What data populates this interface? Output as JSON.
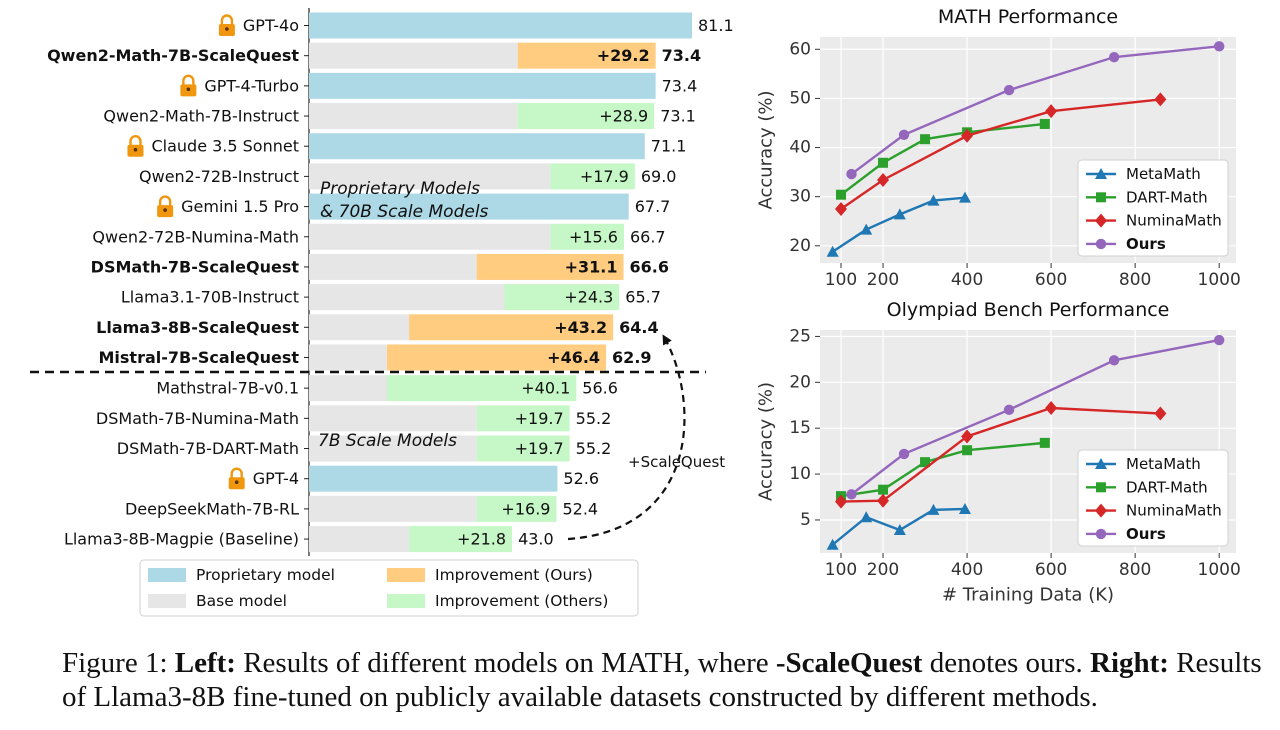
{
  "colors": {
    "proprietary": "#add8e6",
    "base": "#e6e6e6",
    "ours": "#ffcc80",
    "others": "#c6f7c6",
    "lock": "#f0960f",
    "metamath": "#1f77b4",
    "dart": "#2ca02c",
    "numina": "#d62728",
    "ourline": "#9467bd",
    "plot_bg": "#ebebeb"
  },
  "chart_data": [
    {
      "type": "bar",
      "id": "left",
      "xlim": [
        0,
        85
      ],
      "annotations": {
        "group1": [
          "Proprietary Models",
          "& 70B Scale Models"
        ],
        "group2": "7B Scale Models",
        "arrow_label": "+ScaleQuest"
      },
      "legend": {
        "placement": "bottom",
        "entries": [
          {
            "label": "Proprietary model",
            "color_key": "proprietary"
          },
          {
            "label": "Improvement (Ours)",
            "color_key": "ours"
          },
          {
            "label": "Base model",
            "color_key": "base"
          },
          {
            "label": "Improvement (Others)",
            "color_key": "others"
          }
        ]
      },
      "rows": [
        {
          "name": "GPT-4o",
          "kind": "prop",
          "base": 81.1,
          "total": 81.1,
          "total_label": "81.1",
          "lock": true
        },
        {
          "name": "Qwen2-Math-7B-ScaleQuest",
          "kind": "ours",
          "bold": true,
          "base": 44.2,
          "total": 73.4,
          "imp_label": "+29.2",
          "total_label": "73.4"
        },
        {
          "name": "GPT-4-Turbo",
          "kind": "prop",
          "base": 73.4,
          "total": 73.4,
          "total_label": "73.4",
          "lock": true
        },
        {
          "name": "Qwen2-Math-7B-Instruct",
          "kind": "others",
          "base": 44.2,
          "total": 73.1,
          "imp_label": "+28.9",
          "total_label": "73.1"
        },
        {
          "name": "Claude 3.5 Sonnet",
          "kind": "prop",
          "base": 71.1,
          "total": 71.1,
          "total_label": "71.1",
          "lock": true
        },
        {
          "name": "Qwen2-72B-Instruct",
          "kind": "others",
          "base": 51.1,
          "total": 69.0,
          "imp_label": "+17.9",
          "total_label": "69.0"
        },
        {
          "name": "Gemini 1.5 Pro",
          "kind": "prop",
          "base": 67.7,
          "total": 67.7,
          "total_label": "67.7",
          "lock": true
        },
        {
          "name": "Qwen2-72B-Numina-Math",
          "kind": "others",
          "base": 51.1,
          "total": 66.7,
          "imp_label": "+15.6",
          "total_label": "66.7"
        },
        {
          "name": "DSMath-7B-ScaleQuest",
          "kind": "ours",
          "bold": true,
          "base": 35.5,
          "total": 66.6,
          "imp_label": "+31.1",
          "total_label": "66.6"
        },
        {
          "name": "Llama3.1-70B-Instruct",
          "kind": "others",
          "base": 41.4,
          "total": 65.7,
          "imp_label": "+24.3",
          "total_label": "65.7"
        },
        {
          "name": "Llama3-8B-ScaleQuest",
          "kind": "ours",
          "bold": true,
          "base": 21.2,
          "total": 64.4,
          "imp_label": "+43.2",
          "total_label": "64.4"
        },
        {
          "name": "Mistral-7B-ScaleQuest",
          "kind": "ours",
          "bold": true,
          "base": 16.5,
          "total": 62.9,
          "imp_label": "+46.4",
          "total_label": "62.9"
        },
        {
          "name": "Mathstral-7B-v0.1",
          "kind": "others",
          "base": 16.5,
          "total": 56.6,
          "imp_label": "+40.1",
          "total_label": "56.6"
        },
        {
          "name": "DSMath-7B-Numina-Math",
          "kind": "others",
          "base": 35.5,
          "total": 55.2,
          "imp_label": "+19.7",
          "total_label": "55.2"
        },
        {
          "name": "DSMath-7B-DART-Math",
          "kind": "others",
          "base": 35.5,
          "total": 55.2,
          "imp_label": "+19.7",
          "total_label": "55.2"
        },
        {
          "name": "GPT-4",
          "kind": "prop",
          "base": 52.6,
          "total": 52.6,
          "total_label": "52.6",
          "lock": true
        },
        {
          "name": "DeepSeekMath-7B-RL",
          "kind": "others",
          "base": 35.5,
          "total": 52.4,
          "imp_label": "+16.9",
          "total_label": "52.4"
        },
        {
          "name": "Llama3-8B-Magpie (Baseline)",
          "kind": "others",
          "base": 21.2,
          "total": 43.0,
          "imp_label": "+21.8",
          "total_label": "43.0"
        }
      ]
    },
    {
      "type": "line",
      "id": "math",
      "title": "MATH Performance",
      "xlabel": "",
      "ylabel": "Accuracy (%)",
      "xlim": [
        50,
        1040
      ],
      "ylim": [
        16.5,
        62.5
      ],
      "xticks": [
        100,
        200,
        400,
        600,
        800,
        1000
      ],
      "yticks": [
        20,
        30,
        40,
        50,
        60
      ],
      "legend_placement": "lower-right",
      "series": [
        {
          "name": "MetaMath",
          "color_key": "metamath",
          "marker": "triangle",
          "x": [
            80,
            160,
            240,
            320,
            395
          ],
          "y": [
            18.8,
            23.3,
            26.4,
            29.2,
            29.8
          ]
        },
        {
          "name": "DART-Math",
          "color_key": "dart",
          "marker": "square",
          "x": [
            100,
            200,
            300,
            400,
            585
          ],
          "y": [
            30.4,
            36.9,
            41.7,
            43.1,
            44.8
          ]
        },
        {
          "name": "NuminaMath",
          "color_key": "numina",
          "marker": "diamond",
          "x": [
            100,
            200,
            400,
            600,
            860
          ],
          "y": [
            27.5,
            33.4,
            42.4,
            47.4,
            49.8
          ]
        },
        {
          "name": "Ours",
          "bold": true,
          "color_key": "ourline",
          "marker": "circle",
          "x": [
            125,
            250,
            500,
            750,
            1000
          ],
          "y": [
            34.6,
            42.6,
            51.7,
            58.4,
            60.6
          ]
        }
      ]
    },
    {
      "type": "line",
      "id": "olympiad",
      "title": "Olympiad Bench Performance",
      "xlabel": "# Training Data (K)",
      "ylabel": "Accuracy (%)",
      "xlim": [
        50,
        1040
      ],
      "ylim": [
        1.4,
        25.7
      ],
      "xticks": [
        100,
        200,
        400,
        600,
        800,
        1000
      ],
      "yticks": [
        5,
        10,
        15,
        20,
        25
      ],
      "legend_placement": "lower-right",
      "series": [
        {
          "name": "MetaMath",
          "color_key": "metamath",
          "marker": "triangle",
          "x": [
            80,
            160,
            240,
            320,
            395
          ],
          "y": [
            2.3,
            5.3,
            3.9,
            6.1,
            6.2
          ]
        },
        {
          "name": "DART-Math",
          "color_key": "dart",
          "marker": "square",
          "x": [
            100,
            200,
            300,
            400,
            585
          ],
          "y": [
            7.6,
            8.3,
            11.3,
            12.6,
            13.4
          ]
        },
        {
          "name": "NuminaMath",
          "color_key": "numina",
          "marker": "diamond",
          "x": [
            100,
            200,
            400,
            600,
            860
          ],
          "y": [
            7.0,
            7.1,
            14.1,
            17.2,
            16.6
          ]
        },
        {
          "name": "Ours",
          "bold": true,
          "color_key": "ourline",
          "marker": "circle",
          "x": [
            125,
            250,
            500,
            750,
            1000
          ],
          "y": [
            7.8,
            12.2,
            17.0,
            22.4,
            24.6
          ]
        }
      ]
    }
  ],
  "caption": {
    "fig": "Figure 1:",
    "left_label": "Left:",
    "text1": "Results of different models on MATH, where",
    "highlight": "-ScaleQuest",
    "text2": "denotes ours.",
    "right_label": "Right:",
    "text3": "Results of Llama3-8B fine-tuned on publicly available datasets constructed by different methods."
  }
}
